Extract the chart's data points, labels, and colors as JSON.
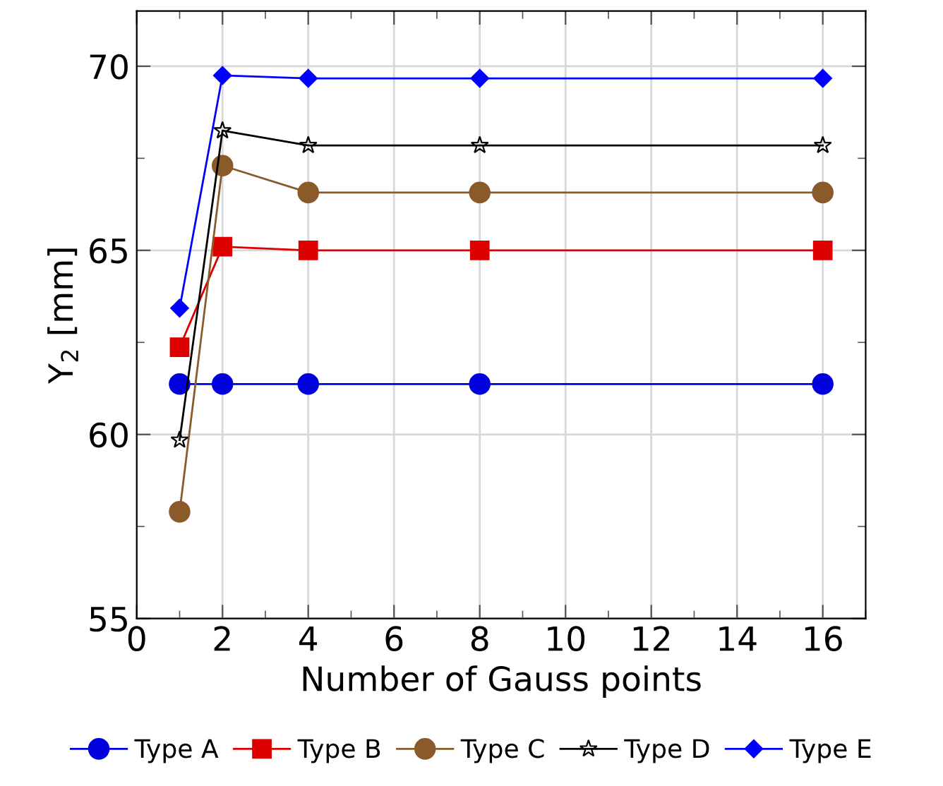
{
  "chart_data": {
    "type": "line",
    "xlabel": "Number of Gauss points",
    "ylabel": "Y$_{2}$ [mm]",
    "x": [
      1,
      2,
      4,
      8,
      16
    ],
    "series": [
      {
        "name": "Type A",
        "color": "#0000dd",
        "marker": "circle",
        "values": [
          61.37,
          61.37,
          61.37,
          61.37,
          61.37
        ]
      },
      {
        "name": "Type B",
        "color": "#dd0000",
        "marker": "square",
        "values": [
          62.37,
          65.1,
          65.0,
          65.0,
          65.0
        ]
      },
      {
        "name": "Type C",
        "color": "#8b5a2b",
        "marker": "circle",
        "values": [
          57.9,
          67.3,
          66.57,
          66.57,
          66.57
        ]
      },
      {
        "name": "Type D",
        "color": "#000000",
        "marker": "star",
        "values": [
          59.85,
          68.25,
          67.85,
          67.85,
          67.85
        ]
      },
      {
        "name": "Type E",
        "color": "#0000ff",
        "marker": "diamond",
        "values": [
          63.43,
          69.75,
          69.67,
          69.67,
          69.67
        ]
      }
    ],
    "xlim": [
      0,
      17
    ],
    "xticks": [
      0,
      2,
      4,
      6,
      8,
      10,
      12,
      14,
      16
    ],
    "ylim": [
      55,
      71.5
    ],
    "yticks": [
      55,
      60,
      65,
      70
    ],
    "grid": true,
    "legend": "bottom",
    "line_style": "solid"
  }
}
